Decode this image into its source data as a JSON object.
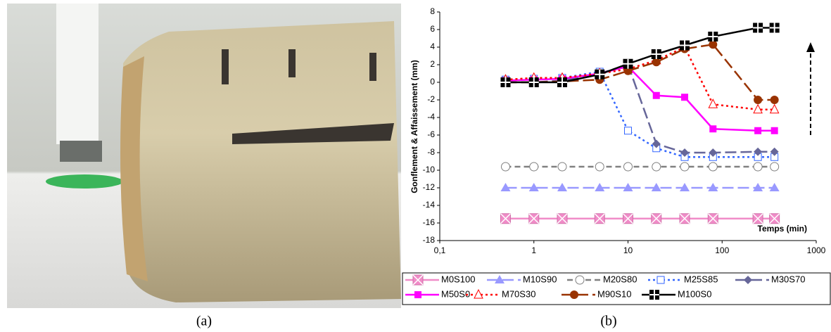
{
  "captions": [
    "(a)",
    "(b)"
  ],
  "chart_data": {
    "type": "line",
    "y_label": "Gonflement & Affaissement (mm)",
    "x_label": "Temps (min)",
    "x_scale": "log",
    "x": [
      0.5,
      1,
      2,
      5,
      10,
      20,
      40,
      80,
      240,
      360
    ],
    "xlim": [
      0.1,
      1000
    ],
    "xticks": [
      {
        "value": 0.1,
        "label": "0,1"
      },
      1,
      10,
      100,
      1000
    ],
    "ylim": [
      -18,
      8
    ],
    "yticks": [
      -18,
      -16,
      -14,
      -12,
      -10,
      -8,
      -6,
      -4,
      -2,
      0,
      2,
      4,
      6,
      8
    ],
    "grid": false,
    "legend": "bottom",
    "series": [
      {
        "name": "M0S100",
        "color": "#f08cc8",
        "line_style": "solid",
        "marker": "square-x",
        "values": [
          -15.5,
          -15.5,
          -15.5,
          -15.5,
          -15.5,
          -15.5,
          -15.5,
          -15.5,
          -15.5,
          -15.5
        ]
      },
      {
        "name": "M10S90",
        "color": "#9999ff",
        "line_style": "longdash",
        "marker": "triangle",
        "values": [
          -12,
          -12,
          -12,
          -12,
          -12,
          -12,
          -12,
          -12,
          -12,
          -12
        ]
      },
      {
        "name": "M20S80",
        "color": "#808080",
        "line_style": "dashed",
        "marker": "circle-open",
        "values": [
          -9.6,
          -9.6,
          -9.6,
          -9.6,
          -9.6,
          -9.6,
          -9.6,
          -9.6,
          -9.6,
          -9.6
        ]
      },
      {
        "name": "M25S85",
        "color": "#3366ff",
        "line_style": "dotted",
        "marker": "square-open",
        "values": [
          0.3,
          0.4,
          0.5,
          1.2,
          -5.5,
          -7.5,
          -8.5,
          -8.5,
          -8.5,
          -8.5
        ]
      },
      {
        "name": "M30S70",
        "color": "#666699",
        "line_style": "longdash",
        "marker": "diamond",
        "values": [
          0,
          0,
          0.2,
          1,
          2,
          -7,
          -8,
          -8,
          -7.9,
          -7.9
        ]
      },
      {
        "name": "M50S0",
        "color": "#ff00ff",
        "line_style": "solid",
        "marker": "square",
        "values": [
          0.2,
          0.3,
          0.4,
          1,
          1.8,
          -1.5,
          -1.7,
          -5.3,
          -5.5,
          -5.5
        ]
      },
      {
        "name": "M70S30",
        "color": "#ff0000",
        "line_style": "dotted",
        "marker": "triangle-open",
        "values": [
          0.3,
          0.5,
          0.5,
          1,
          1.5,
          2.5,
          4,
          -2.5,
          -3.1,
          -3.1
        ]
      },
      {
        "name": "M90S10",
        "color": "#993300",
        "line_style": "longdash",
        "marker": "circle",
        "values": [
          0,
          0,
          0.1,
          0.3,
          1.3,
          2.3,
          3.8,
          4.3,
          -2,
          -2
        ]
      },
      {
        "name": "M100S0",
        "color": "#000000",
        "line_style": "solid",
        "marker": "square-plus",
        "values": [
          0,
          0,
          0,
          0.9,
          2.1,
          3.2,
          4.2,
          5.2,
          6.2,
          6.2
        ]
      }
    ]
  }
}
